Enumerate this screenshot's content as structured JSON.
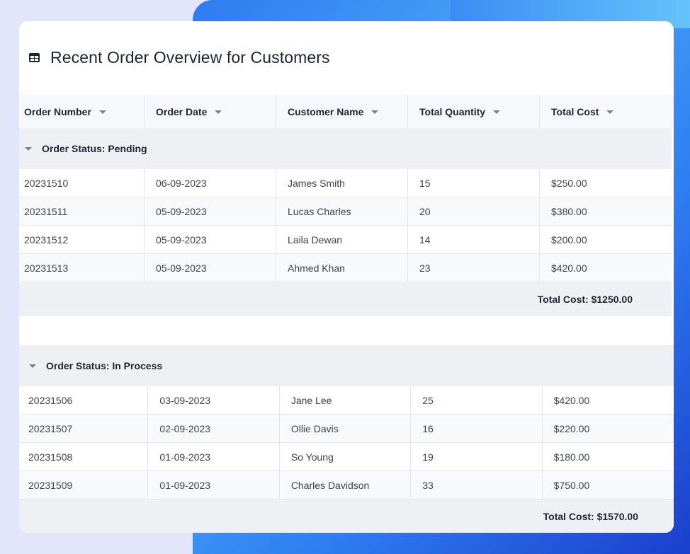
{
  "title": "Recent Order Overview for Customers",
  "title_icon": "table-icon",
  "columns": [
    "Order Number",
    "Order Date",
    "Customer Name",
    "Total Quantity",
    "Total Cost"
  ],
  "groups": [
    {
      "label": "Order Status: Pending",
      "rows": [
        [
          "20231510",
          "06-09-2023",
          "James Smith",
          "15",
          "$250.00"
        ],
        [
          "20231511",
          "05-09-2023",
          "Lucas Charles",
          "20",
          "$380.00"
        ],
        [
          "20231512",
          "05-09-2023",
          "Laila Dewan",
          "14",
          "$200.00"
        ],
        [
          "20231513",
          "05-09-2023",
          "Ahmed Khan",
          "23",
          "$420.00"
        ]
      ],
      "total": "Total Cost: $1250.00"
    },
    {
      "label": "Order Status: In Process",
      "rows": [
        [
          "20231506",
          "03-09-2023",
          "Jane Lee",
          "25",
          "$420.00"
        ],
        [
          "20231507",
          "02-09-2023",
          "Ollie Davis",
          "16",
          "$220.00"
        ],
        [
          "20231508",
          "01-09-2023",
          "So Young",
          "19",
          "$180.00"
        ],
        [
          "20231509",
          "01-09-2023",
          "Charles Davidson",
          "33",
          "$750.00"
        ]
      ],
      "total": "Total Cost: $1570.00"
    }
  ],
  "colors": {
    "background": "#e3e6fb",
    "accent_gradient_start": "#2f7bf0",
    "accent_gradient_end": "#1b3fcc",
    "header_bg": "#f7f8fb",
    "group_bg": "#eef0f4"
  }
}
